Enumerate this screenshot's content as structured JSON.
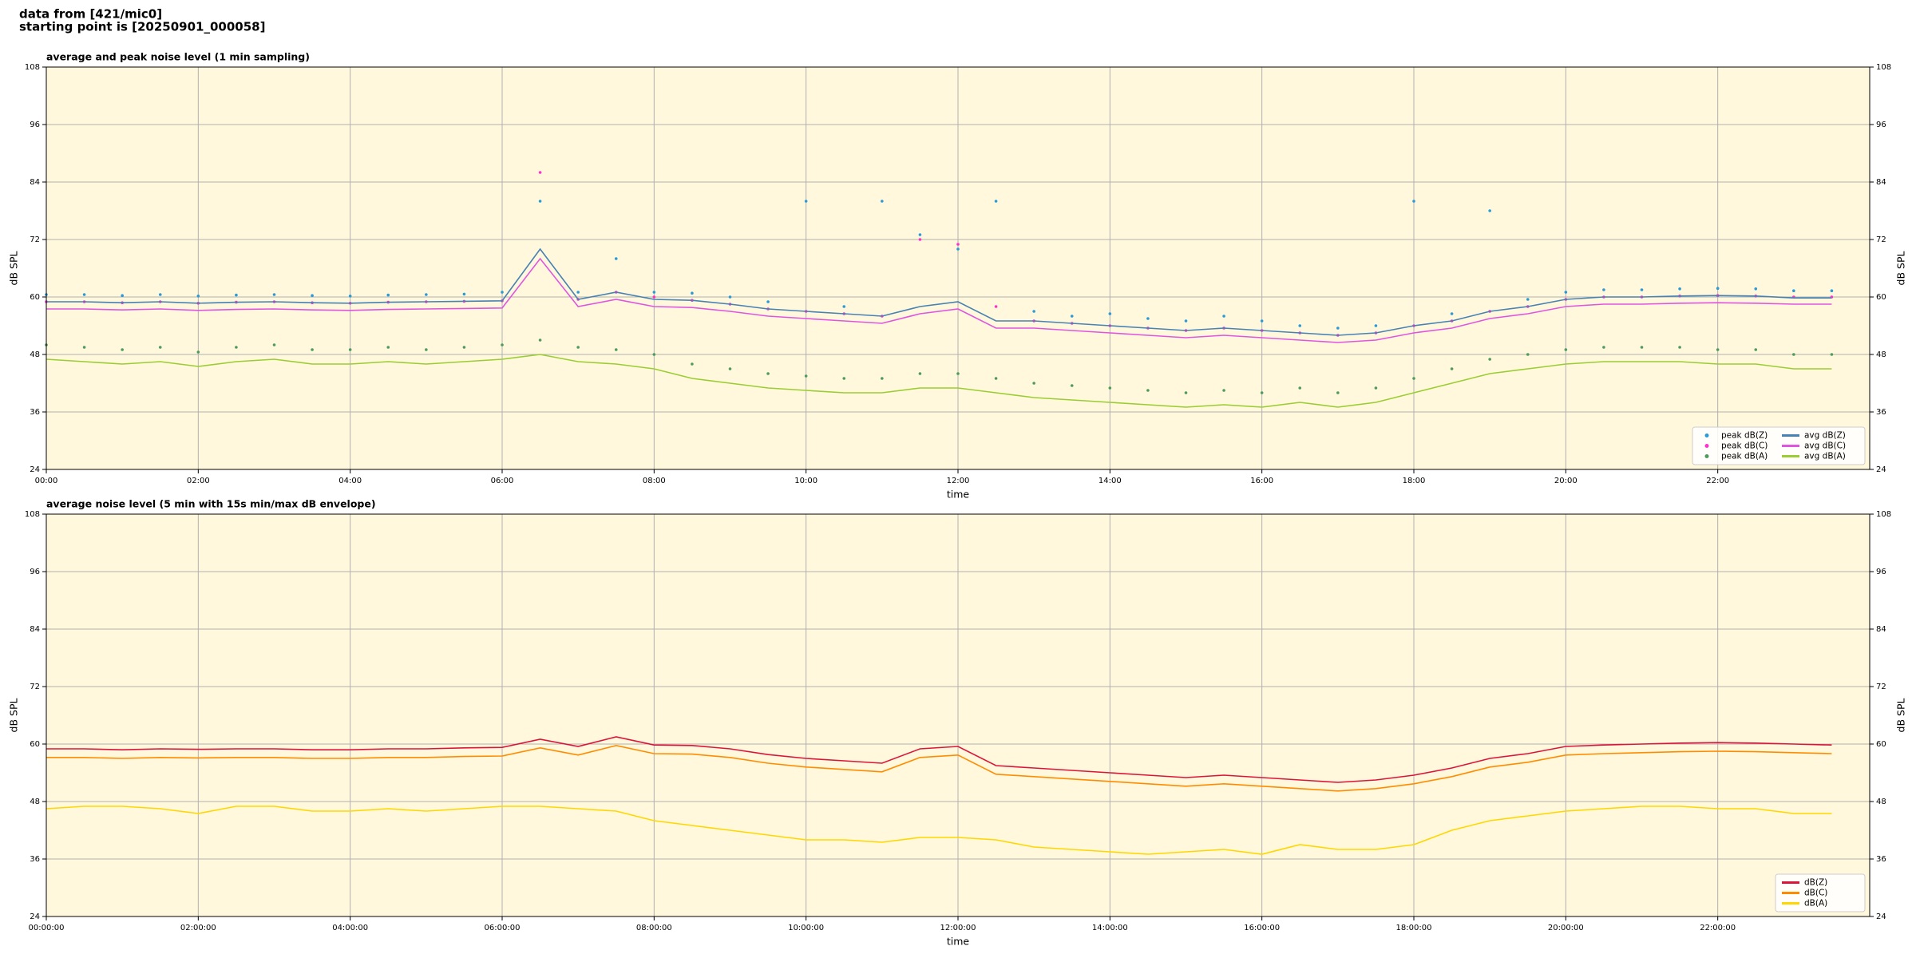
{
  "header": {
    "line1": "data from [421/mic0]",
    "line2": "starting point is [20250901_000058]"
  },
  "chart_data": [
    {
      "type": "line",
      "title": "average and peak noise level (1 min sampling)",
      "xlabel": "time",
      "ylabel": "dB SPL",
      "x": [
        0,
        0.5,
        1,
        1.5,
        2,
        2.5,
        3,
        3.5,
        4,
        4.5,
        5,
        5.5,
        6,
        6.5,
        7,
        7.5,
        8,
        8.5,
        9,
        9.5,
        10,
        10.5,
        11,
        11.5,
        12,
        12.5,
        13,
        13.5,
        14,
        14.5,
        15,
        15.5,
        16,
        16.5,
        17,
        17.5,
        18,
        18.5,
        19,
        19.5,
        20,
        20.5,
        21,
        21.5,
        22,
        22.5,
        23,
        23.5
      ],
      "xlim": [
        0,
        24
      ],
      "xticks": [
        {
          "value": 0,
          "label": "00:00"
        },
        {
          "value": 2,
          "label": "02:00"
        },
        {
          "value": 4,
          "label": "04:00"
        },
        {
          "value": 6,
          "label": "06:00"
        },
        {
          "value": 8,
          "label": "08:00"
        },
        {
          "value": 10,
          "label": "10:00"
        },
        {
          "value": 12,
          "label": "12:00"
        },
        {
          "value": 14,
          "label": "14:00"
        },
        {
          "value": 16,
          "label": "16:00"
        },
        {
          "value": 18,
          "label": "18:00"
        },
        {
          "value": 20,
          "label": "20:00"
        },
        {
          "value": 22,
          "label": "22:00"
        }
      ],
      "ylim": [
        24,
        108
      ],
      "yticks": [
        24,
        36,
        48,
        60,
        72,
        84,
        96,
        108
      ],
      "grid": true,
      "legend": "lower right",
      "series": [
        {
          "name": "peak dB(Z)",
          "kind": "scatter",
          "color": "#2b9bd8",
          "values": [
            60.5,
            60.5,
            60.3,
            60.5,
            60.2,
            60.4,
            60.5,
            60.3,
            60.2,
            60.4,
            60.5,
            60.6,
            61,
            80,
            61,
            68,
            61,
            60.8,
            60,
            59,
            80,
            58,
            80,
            73,
            70,
            80,
            57,
            56,
            56.5,
            55.5,
            55,
            56,
            55,
            54,
            53.5,
            54,
            80,
            56.5,
            78,
            59.5,
            61,
            61.5,
            61.5,
            61.7,
            61.8,
            61.7,
            61.3,
            61.3
          ]
        },
        {
          "name": "peak dB(C)",
          "kind": "scatter",
          "color": "#ff33cc",
          "values": [
            59,
            59,
            58.8,
            59,
            58.7,
            58.9,
            59,
            58.8,
            58.7,
            58.9,
            59,
            59.1,
            59.2,
            86,
            59.5,
            61,
            60,
            59.3,
            58.5,
            57.5,
            57,
            56.5,
            56,
            72,
            71,
            58,
            55,
            54.5,
            54,
            53.5,
            53,
            53.5,
            53,
            52.5,
            52,
            52.5,
            54,
            55,
            57,
            58,
            59.5,
            60,
            60,
            60.2,
            60.3,
            60.2,
            60,
            60
          ]
        },
        {
          "name": "peak dB(A)",
          "kind": "scatter",
          "color": "#4f9a5c",
          "values": [
            50,
            49.5,
            49,
            49.5,
            48.5,
            49.5,
            50,
            49,
            49,
            49.5,
            49,
            49.5,
            50,
            51,
            49.5,
            49,
            48,
            46,
            45,
            44,
            43.5,
            43,
            43,
            44,
            44,
            43,
            42,
            41.5,
            41,
            40.5,
            40,
            40.5,
            40,
            41,
            40,
            41,
            43,
            45,
            47,
            48,
            49,
            49.5,
            49.5,
            49.5,
            49,
            49,
            48,
            48
          ]
        },
        {
          "name": "avg dB(Z)",
          "kind": "line",
          "color": "#4682b4",
          "values": [
            59,
            59,
            58.8,
            59,
            58.7,
            58.9,
            59,
            58.8,
            58.7,
            58.9,
            59,
            59.1,
            59.2,
            70,
            59.5,
            61,
            59.5,
            59.3,
            58.5,
            57.5,
            57,
            56.5,
            56,
            58,
            59,
            55,
            55,
            54.5,
            54,
            53.5,
            53,
            53.5,
            53,
            52.5,
            52,
            52.5,
            54,
            55,
            57,
            58,
            59.5,
            60,
            60,
            60.2,
            60.3,
            60.2,
            59.8,
            59.8
          ]
        },
        {
          "name": "avg dB(C)",
          "kind": "line",
          "color": "#e055e0",
          "values": [
            57.5,
            57.5,
            57.3,
            57.5,
            57.2,
            57.4,
            57.5,
            57.3,
            57.2,
            57.4,
            57.5,
            57.6,
            57.7,
            68,
            58,
            59.5,
            58,
            57.8,
            57,
            56,
            55.5,
            55,
            54.5,
            56.5,
            57.5,
            53.5,
            53.5,
            53,
            52.5,
            52,
            51.5,
            52,
            51.5,
            51,
            50.5,
            51,
            52.5,
            53.5,
            55.5,
            56.5,
            58,
            58.5,
            58.5,
            58.7,
            58.8,
            58.7,
            58.5,
            58.5
          ]
        },
        {
          "name": "avg dB(A)",
          "kind": "line",
          "color": "#9acd32",
          "values": [
            47,
            46.5,
            46,
            46.5,
            45.5,
            46.5,
            47,
            46,
            46,
            46.5,
            46,
            46.5,
            47,
            48,
            46.5,
            46,
            45,
            43,
            42,
            41,
            40.5,
            40,
            40,
            41,
            41,
            40,
            39,
            38.5,
            38,
            37.5,
            37,
            37.5,
            37,
            38,
            37,
            38,
            40,
            42,
            44,
            45,
            46,
            46.5,
            46.5,
            46.5,
            46,
            46,
            45,
            45
          ]
        }
      ]
    },
    {
      "type": "line",
      "title": "average noise level (5 min with 15s min/max dB envelope)",
      "xlabel": "time",
      "ylabel": "dB SPL",
      "x": [
        0,
        0.5,
        1,
        1.5,
        2,
        2.5,
        3,
        3.5,
        4,
        4.5,
        5,
        5.5,
        6,
        6.5,
        7,
        7.5,
        8,
        8.5,
        9,
        9.5,
        10,
        10.5,
        11,
        11.5,
        12,
        12.5,
        13,
        13.5,
        14,
        14.5,
        15,
        15.5,
        16,
        16.5,
        17,
        17.5,
        18,
        18.5,
        19,
        19.5,
        20,
        20.5,
        21,
        21.5,
        22,
        22.5,
        23,
        23.5
      ],
      "xlim": [
        0,
        24
      ],
      "xticks": [
        {
          "value": 0,
          "label": "00:00:00"
        },
        {
          "value": 2,
          "label": "02:00:00"
        },
        {
          "value": 4,
          "label": "04:00:00"
        },
        {
          "value": 6,
          "label": "06:00:00"
        },
        {
          "value": 8,
          "label": "08:00:00"
        },
        {
          "value": 10,
          "label": "10:00:00"
        },
        {
          "value": 12,
          "label": "12:00:00"
        },
        {
          "value": 14,
          "label": "14:00:00"
        },
        {
          "value": 16,
          "label": "16:00:00"
        },
        {
          "value": 18,
          "label": "18:00:00"
        },
        {
          "value": 20,
          "label": "20:00:00"
        },
        {
          "value": 22,
          "label": "22:00:00"
        }
      ],
      "ylim": [
        24,
        108
      ],
      "yticks": [
        24,
        36,
        48,
        60,
        72,
        84,
        96,
        108
      ],
      "grid": true,
      "legend": "lower right",
      "series": [
        {
          "name": "dB(Z)",
          "kind": "line",
          "color": "#dc143c",
          "values": [
            59,
            59,
            58.8,
            59,
            58.9,
            59,
            59,
            58.8,
            58.8,
            59,
            59,
            59.2,
            59.3,
            61,
            59.5,
            61.5,
            59.8,
            59.7,
            59,
            57.8,
            57,
            56.5,
            56,
            59,
            59.5,
            55.5,
            55,
            54.5,
            54,
            53.5,
            53,
            53.5,
            53,
            52.5,
            52,
            52.5,
            53.5,
            55,
            57,
            58,
            59.5,
            59.8,
            60,
            60.2,
            60.3,
            60.2,
            60,
            59.8
          ]
        },
        {
          "name": "dB(C)",
          "kind": "line",
          "color": "#ff8c00",
          "values": [
            57.2,
            57.2,
            57,
            57.2,
            57.1,
            57.2,
            57.2,
            57,
            57,
            57.2,
            57.2,
            57.4,
            57.5,
            59.2,
            57.7,
            59.7,
            58,
            57.9,
            57.2,
            56,
            55.2,
            54.7,
            54.2,
            57.2,
            57.7,
            53.7,
            53.2,
            52.7,
            52.2,
            51.7,
            51.2,
            51.7,
            51.2,
            50.7,
            50.2,
            50.7,
            51.7,
            53.2,
            55.2,
            56.2,
            57.7,
            58,
            58.2,
            58.4,
            58.5,
            58.4,
            58.2,
            58
          ]
        },
        {
          "name": "dB(A)",
          "kind": "line",
          "color": "#ffd700",
          "values": [
            46.5,
            47,
            47,
            46.5,
            45.5,
            47,
            47,
            46,
            46,
            46.5,
            46,
            46.5,
            47,
            47,
            46.5,
            46,
            44,
            43,
            42,
            41,
            40,
            40,
            39.5,
            40.5,
            40.5,
            40,
            38.5,
            38,
            37.5,
            37,
            37.5,
            38,
            37,
            39,
            38,
            38,
            39,
            42,
            44,
            45,
            46,
            46.5,
            47,
            47,
            46.5,
            46.5,
            45.5,
            45.5
          ]
        }
      ]
    }
  ]
}
